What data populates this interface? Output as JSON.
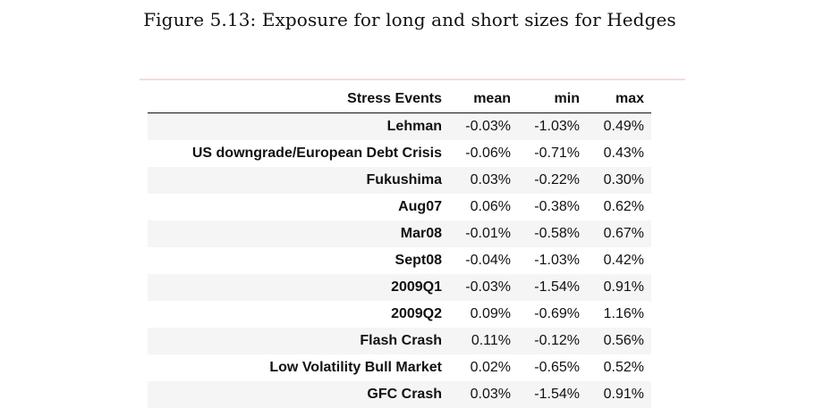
{
  "caption": "Figure 5.13: Exposure for long and short sizes for Hedges",
  "table": {
    "headers": [
      "Stress Events",
      "mean",
      "min",
      "max"
    ],
    "rows": [
      {
        "event": "Lehman",
        "mean": "-0.03%",
        "min": "-1.03%",
        "max": "0.49%"
      },
      {
        "event": "US downgrade/European Debt Crisis",
        "mean": "-0.06%",
        "min": "-0.71%",
        "max": "0.43%"
      },
      {
        "event": "Fukushima",
        "mean": "0.03%",
        "min": "-0.22%",
        "max": "0.30%"
      },
      {
        "event": "Aug07",
        "mean": "0.06%",
        "min": "-0.38%",
        "max": "0.62%"
      },
      {
        "event": "Mar08",
        "mean": "-0.01%",
        "min": "-0.58%",
        "max": "0.67%"
      },
      {
        "event": "Sept08",
        "mean": "-0.04%",
        "min": "-1.03%",
        "max": "0.42%"
      },
      {
        "event": "2009Q1",
        "mean": "-0.03%",
        "min": "-1.54%",
        "max": "0.91%"
      },
      {
        "event": "2009Q2",
        "mean": "0.09%",
        "min": "-0.69%",
        "max": "1.16%"
      },
      {
        "event": "Flash Crash",
        "mean": "0.11%",
        "min": "-0.12%",
        "max": "0.56%"
      },
      {
        "event": "Low Volatility Bull Market",
        "mean": "0.02%",
        "min": "-0.65%",
        "max": "0.52%"
      },
      {
        "event": "GFC Crash",
        "mean": "0.03%",
        "min": "-1.54%",
        "max": "0.91%"
      }
    ]
  }
}
